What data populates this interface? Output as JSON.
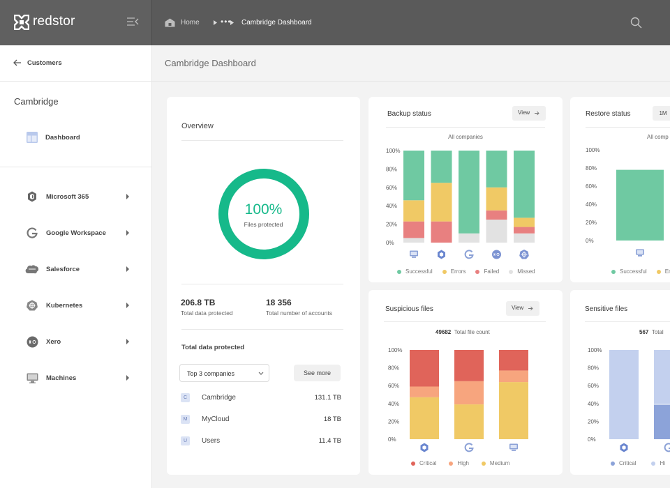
{
  "app": {
    "name": "redstor"
  },
  "breadcrumb": {
    "home": "Home",
    "ellipsis": "•••",
    "current": "Cambridge Dashboard"
  },
  "sidebar": {
    "back_label": "Customers",
    "section_title": "Cambridge",
    "dashboard_label": "Dashboard",
    "items": [
      {
        "label": "Microsoft 365",
        "icon": "microsoft-365-icon"
      },
      {
        "label": "Google Workspace",
        "icon": "google-icon"
      },
      {
        "label": "Salesforce",
        "icon": "salesforce-icon"
      },
      {
        "label": "Kubernetes",
        "icon": "kubernetes-icon"
      },
      {
        "label": "Xero",
        "icon": "xero-icon"
      },
      {
        "label": "Machines",
        "icon": "monitor-icon"
      }
    ]
  },
  "page_title": "Cambridge Dashboard",
  "overview": {
    "title": "Overview",
    "percent": "100%",
    "percent_value": 100,
    "percent_label": "Files protected",
    "stats": [
      {
        "value": "206.8 TB",
        "label": "Total data protected"
      },
      {
        "value": "18 356",
        "label": "Total number of accounts"
      }
    ],
    "total_title": "Total data protected",
    "select_value": "Top 3 companies",
    "see_more": "See more",
    "companies": [
      {
        "badge": "C",
        "name": "Cambridge",
        "value": "131.1 TB"
      },
      {
        "badge": "M",
        "name": "MyCloud",
        "value": "18 TB"
      },
      {
        "badge": "U",
        "name": "Users",
        "value": "11.4 TB"
      }
    ]
  },
  "view_label": "View",
  "colors": {
    "accent": "#16b98a",
    "successful": "#6fc9a2",
    "errors": "#f0c965",
    "failed": "#e88080",
    "missed": "#e2e2e2",
    "critical": "#e0645a",
    "high": "#f7a57e",
    "medium": "#f0c965",
    "sens_critical": "#8ca3d9",
    "sens_high": "#c3d0ee"
  },
  "chart_data": [
    {
      "type": "bar",
      "stacked": true,
      "title": "Backup status",
      "subtitle": "All companies",
      "categories": [
        "Machines",
        "Microsoft 365",
        "Google Workspace",
        "Xero",
        "Kubernetes"
      ],
      "category_icons": [
        "monitor-icon",
        "microsoft-365-icon",
        "google-icon",
        "xero-icon",
        "kubernetes-icon"
      ],
      "series": [
        {
          "name": "Missed",
          "values": [
            5,
            0,
            10,
            25,
            10
          ]
        },
        {
          "name": "Failed",
          "values": [
            18,
            23,
            0,
            10,
            7
          ]
        },
        {
          "name": "Errors",
          "values": [
            23,
            42,
            0,
            25,
            10
          ]
        },
        {
          "name": "Successful",
          "values": [
            54,
            35,
            90,
            40,
            73
          ]
        }
      ],
      "ylim": [
        0,
        100
      ],
      "yticks": [
        "0%",
        "20%",
        "40%",
        "60%",
        "80%",
        "100%"
      ],
      "legend": [
        "Successful",
        "Errors",
        "Failed",
        "Missed"
      ],
      "legend_position": "bottom"
    },
    {
      "type": "bar",
      "stacked": true,
      "title": "Restore status",
      "subtitle": "All comp",
      "period_button": "1M",
      "categories": [
        "Machines"
      ],
      "category_icons": [
        "monitor-icon"
      ],
      "series": [
        {
          "name": "Successful",
          "values": [
            78
          ]
        }
      ],
      "ylim": [
        0,
        100
      ],
      "yticks": [
        "0%",
        "20%",
        "40%",
        "60%",
        "80%",
        "100%"
      ],
      "legend": [
        "Successful",
        "Er"
      ],
      "legend_position": "bottom"
    },
    {
      "type": "bar",
      "stacked": true,
      "title": "Suspicious files",
      "subtitle_value": "49682",
      "subtitle": "Total file count",
      "categories": [
        "Microsoft 365",
        "Google Workspace",
        "Machines"
      ],
      "category_icons": [
        "microsoft-365-icon",
        "google-icon",
        "monitor-icon"
      ],
      "series": [
        {
          "name": "Medium",
          "values": [
            47,
            39,
            64
          ]
        },
        {
          "name": "High",
          "values": [
            12,
            26,
            13
          ]
        },
        {
          "name": "Critical",
          "values": [
            41,
            35,
            23
          ]
        }
      ],
      "ylim": [
        0,
        100
      ],
      "yticks": [
        "0%",
        "20%",
        "40%",
        "60%",
        "80%",
        "100%"
      ],
      "legend": [
        "Critical",
        "High",
        "Medium"
      ],
      "legend_position": "bottom"
    },
    {
      "type": "bar",
      "stacked": true,
      "title": "Sensitive files",
      "subtitle_value": "567",
      "subtitle": "Total",
      "categories": [
        "Microsoft 365",
        "Google Workspace"
      ],
      "category_icons": [
        "microsoft-365-icon",
        "google-icon"
      ],
      "series": [
        {
          "name": "Critical",
          "values": [
            0,
            39
          ]
        },
        {
          "name": "High",
          "values": [
            100,
            61
          ]
        }
      ],
      "ylim": [
        0,
        100
      ],
      "yticks": [
        "0%",
        "20%",
        "40%",
        "60%",
        "80%",
        "100%"
      ],
      "legend": [
        "Critical",
        "Hi"
      ],
      "legend_position": "bottom"
    }
  ]
}
